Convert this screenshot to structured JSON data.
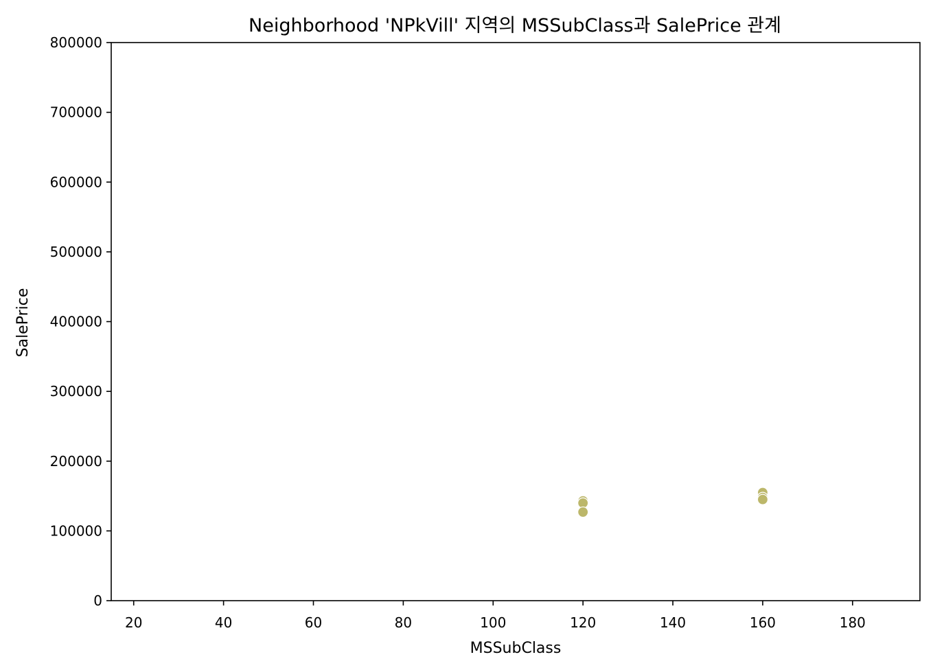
{
  "colors": {
    "marker": "#bcb76a",
    "marker_edge": "#ffffff",
    "axis": "#000000"
  },
  "chart_data": {
    "type": "scatter",
    "title": "Neighborhood 'NPkVill' 지역의 MSSubClass과 SalePrice 관계",
    "xlabel": "MSSubClass",
    "ylabel": "SalePrice",
    "xlim": [
      15,
      195
    ],
    "ylim": [
      0,
      800000
    ],
    "xticks": [
      20,
      40,
      60,
      80,
      100,
      120,
      140,
      160,
      180
    ],
    "yticks": [
      0,
      100000,
      200000,
      300000,
      400000,
      500000,
      600000,
      700000,
      800000
    ],
    "xtick_labels": [
      "20",
      "40",
      "60",
      "80",
      "100",
      "120",
      "140",
      "160",
      "180"
    ],
    "ytick_labels": [
      "0",
      "100000",
      "200000",
      "300000",
      "400000",
      "500000",
      "600000",
      "700000",
      "800000"
    ],
    "grid": false,
    "points": [
      {
        "x": 120,
        "y": 143000
      },
      {
        "x": 120,
        "y": 140000
      },
      {
        "x": 120,
        "y": 127000
      },
      {
        "x": 160,
        "y": 155000
      },
      {
        "x": 160,
        "y": 148000
      },
      {
        "x": 160,
        "y": 145000
      }
    ]
  }
}
